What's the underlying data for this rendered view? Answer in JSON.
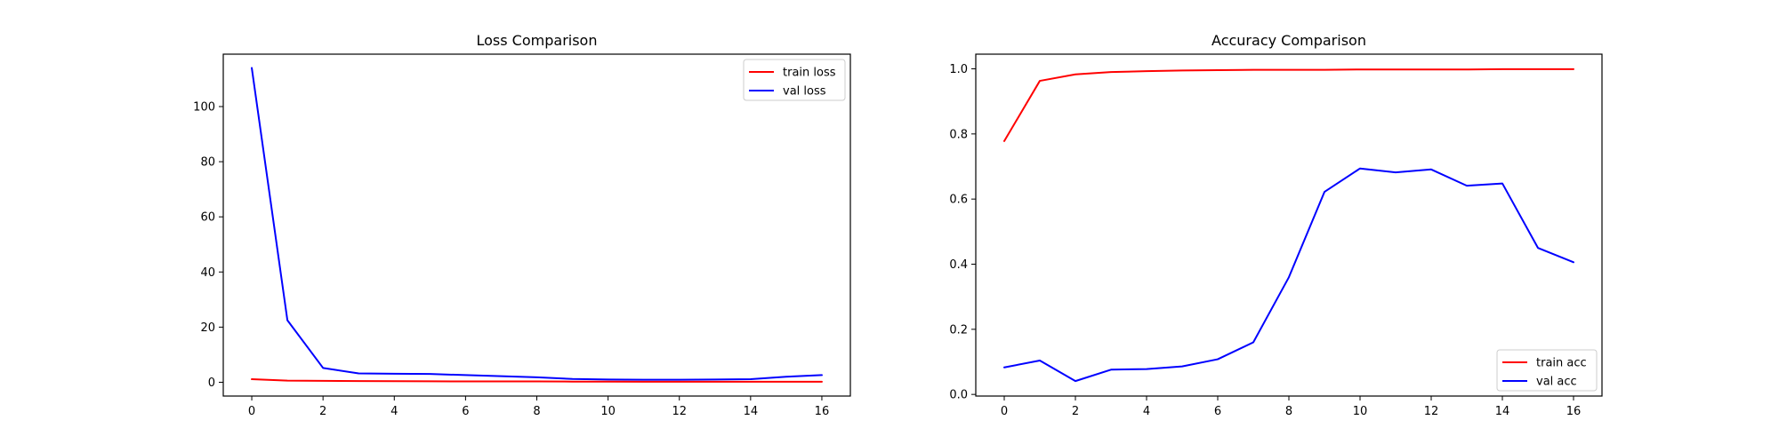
{
  "chart_data": [
    {
      "type": "line",
      "title": "Loss Comparison",
      "xlabel": "",
      "ylabel": "",
      "x": [
        0,
        1,
        2,
        3,
        4,
        5,
        6,
        7,
        8,
        9,
        10,
        11,
        12,
        13,
        14,
        15,
        16
      ],
      "xlim": [
        -0.8,
        16.8
      ],
      "ylim": [
        -5,
        119
      ],
      "xticks": [
        0,
        2,
        4,
        6,
        8,
        10,
        12,
        14,
        16
      ],
      "yticks": [
        0,
        20,
        40,
        60,
        80,
        100
      ],
      "legend_position": "top-right",
      "grid": false,
      "series": [
        {
          "name": "train loss",
          "color": "#ff0000",
          "values": [
            1.1,
            0.6,
            0.5,
            0.45,
            0.4,
            0.35,
            0.3,
            0.3,
            0.3,
            0.25,
            0.25,
            0.2,
            0.2,
            0.2,
            0.2,
            0.2,
            0.2
          ]
        },
        {
          "name": "val loss",
          "color": "#0000ff",
          "values": [
            114,
            22.5,
            5.2,
            3.2,
            3.1,
            3.0,
            2.6,
            2.2,
            1.8,
            1.2,
            1.0,
            0.9,
            0.9,
            1.0,
            1.1,
            2.0,
            2.6
          ]
        }
      ]
    },
    {
      "type": "line",
      "title": "Accuracy Comparison",
      "xlabel": "",
      "ylabel": "",
      "x": [
        0,
        1,
        2,
        3,
        4,
        5,
        6,
        7,
        8,
        9,
        10,
        11,
        12,
        13,
        14,
        15,
        16
      ],
      "xlim": [
        -0.8,
        16.8
      ],
      "ylim": [
        -0.005,
        1.045
      ],
      "xticks": [
        0,
        2,
        4,
        6,
        8,
        10,
        12,
        14,
        16
      ],
      "yticks": [
        0.0,
        0.2,
        0.4,
        0.6,
        0.8,
        1.0
      ],
      "ytick_decimals": 1,
      "legend_position": "bottom-right",
      "grid": false,
      "series": [
        {
          "name": "train acc",
          "color": "#ff0000",
          "values": [
            0.778,
            0.963,
            0.983,
            0.99,
            0.993,
            0.995,
            0.996,
            0.997,
            0.997,
            0.997,
            0.998,
            0.998,
            0.998,
            0.998,
            0.999,
            0.999,
            0.999
          ]
        },
        {
          "name": "val acc",
          "color": "#0000ff",
          "values": [
            0.083,
            0.104,
            0.041,
            0.076,
            0.078,
            0.086,
            0.108,
            0.16,
            0.36,
            0.622,
            0.694,
            0.682,
            0.691,
            0.641,
            0.648,
            0.45,
            0.406
          ]
        }
      ]
    }
  ]
}
